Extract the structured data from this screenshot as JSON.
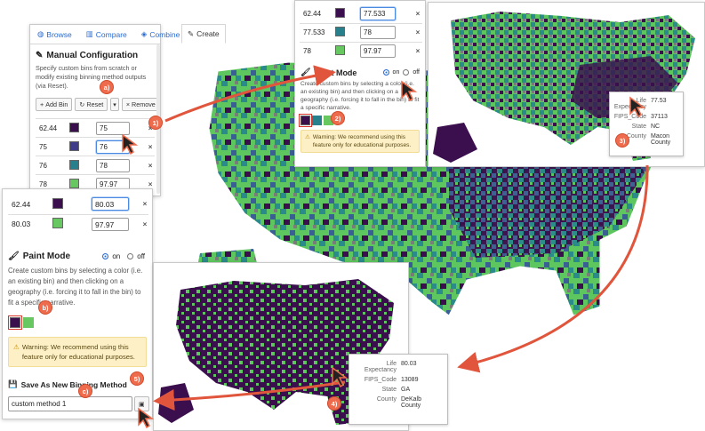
{
  "tabs": [
    {
      "label": "Browse",
      "icon": "globe-icon"
    },
    {
      "label": "Compare",
      "icon": "bars-icon"
    },
    {
      "label": "Combine",
      "icon": "layers-icon"
    },
    {
      "label": "Create",
      "icon": "edit-icon"
    }
  ],
  "manual": {
    "title": "Manual Configuration",
    "description": "Specify custom bins from scratch or modify existing binning method outputs (via Reset).",
    "add_bin": "Add Bin",
    "reset": "Reset",
    "remove": "Remove",
    "bins": [
      {
        "label": "62.44",
        "value": "75",
        "color": "#3b0f4e"
      },
      {
        "label": "75",
        "value": "76",
        "color": "#3f3d8a"
      },
      {
        "label": "76",
        "value": "78",
        "color": "#27808b"
      },
      {
        "label": "78",
        "value": "97.97",
        "color": "#67c862"
      }
    ]
  },
  "paint_top": {
    "bins": [
      {
        "label": "62.44",
        "value": "77.533",
        "color": "#3b0f4e"
      },
      {
        "label": "77.533",
        "value": "78",
        "color": "#27808b"
      },
      {
        "label": "78",
        "value": "97.97",
        "color": "#67c862"
      }
    ],
    "title": "Paint Mode",
    "on": "on",
    "off": "off",
    "description": "Create custom bins by selecting a color (i.e. an existing bin) and then clicking on a geography (i.e. forcing it to fall in the bin) to fit a specific narrative.",
    "warning": "Warning: We recommend using this feature only for educational purposes."
  },
  "paint_left": {
    "bins": [
      {
        "label": "62.44",
        "value": "80.03",
        "color": "#3b0f4e"
      },
      {
        "label": "80.03",
        "value": "97.97",
        "color": "#67c862"
      }
    ],
    "title": "Paint Mode",
    "on": "on",
    "off": "off",
    "description": "Create custom bins by selecting a color (i.e. an existing bin) and then clicking on a geography (i.e. forcing it to fall in the bin) to fit a specific narrative.",
    "warning": "Warning: We recommend using this feature only for educational purposes.",
    "save_title": "Save As New Binning Method",
    "save_value": "custom method 1"
  },
  "tooltip_top": {
    "k1": "Life Expectancy",
    "v1": "77.53",
    "k2": "FIPS_Code",
    "v2": "37113",
    "k3": "State",
    "v3": "NC",
    "k4": "County",
    "v4": "Macon County"
  },
  "tooltip_bottom": {
    "k1": "Life Expectancy",
    "v1": "80.03",
    "k2": "FIPS_Code",
    "v2": "13089",
    "k3": "State",
    "v3": "GA",
    "k4": "County",
    "v4": "DeKalb County"
  },
  "badges": {
    "b1": "1)",
    "b2": "2)",
    "b3": "3)",
    "b4": "4)",
    "b5": "5)",
    "ba": "a)",
    "bb": "b)",
    "bc": "c)"
  },
  "colors": {
    "accent": "#2a6bd1",
    "badge": "#ee6c4d",
    "arrow": "#e0553b",
    "dark": "#3b0f4e",
    "teal": "#27808b",
    "green": "#67c862"
  }
}
